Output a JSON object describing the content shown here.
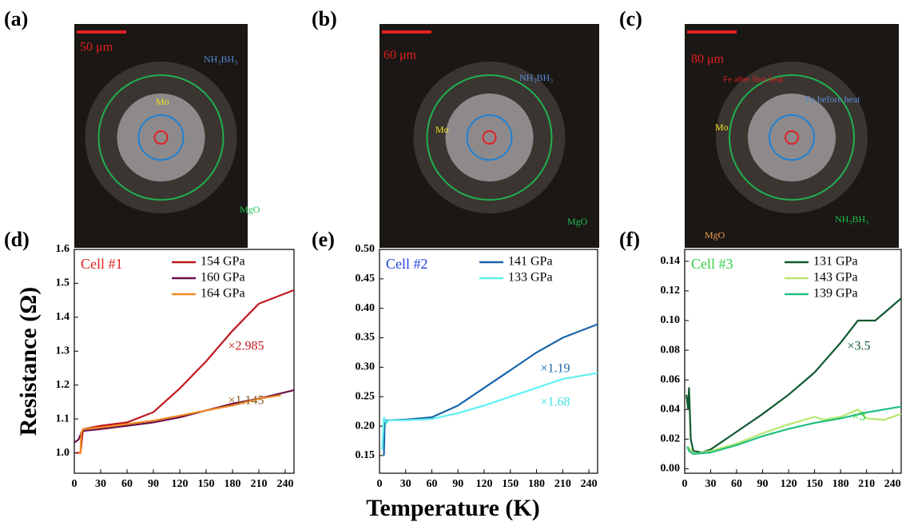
{
  "figure": {
    "xlabel": "Temperature (K)",
    "ylabel": "Resistance (Ω)"
  },
  "panels": [
    {
      "label": "(a)",
      "texts": [
        "50 μm",
        "NH₃BH₃",
        "Mo",
        "MgO"
      ]
    },
    {
      "label": "(b)",
      "texts": [
        "60 μm",
        "NH₃BH₃",
        "Mo",
        "MgO"
      ]
    },
    {
      "label": "(c)",
      "texts": [
        "80 μm",
        "Fe after first heat",
        "Fe before heat",
        "Mo",
        "NH₃BH₃",
        "MgO"
      ]
    }
  ],
  "chart_data": [
    {
      "type": "line",
      "label": "(d)",
      "cell": "Cell #1",
      "cell_color": "#e02020",
      "xlim": [
        0,
        250
      ],
      "xticks": [
        0,
        30,
        60,
        90,
        120,
        150,
        180,
        210,
        240
      ],
      "ylim": [
        0.94,
        1.6
      ],
      "yticks": [
        {
          "value": 1,
          "label": "1.0"
        },
        1.1,
        1.2,
        1.3,
        1.4,
        1.5,
        1.6
      ],
      "series": [
        {
          "name": "154 GPa",
          "color": "#c0181c",
          "x": [
            2,
            7,
            10,
            30,
            60,
            90,
            120,
            150,
            180,
            210,
            250
          ],
          "values": [
            1.0,
            1.0,
            1.07,
            1.08,
            1.09,
            1.12,
            1.19,
            1.27,
            1.36,
            1.44,
            1.48
          ]
        },
        {
          "name": "160 GPa",
          "color": "#6a0f4a",
          "x": [
            0,
            5,
            8,
            10,
            30,
            60,
            90,
            120,
            150,
            180,
            210,
            250
          ],
          "values": [
            1.03,
            1.04,
            1.06,
            1.065,
            1.07,
            1.08,
            1.09,
            1.105,
            1.125,
            1.145,
            1.16,
            1.185
          ]
        },
        {
          "name": "164 GPa",
          "color": "#f08a24",
          "x": [
            5,
            7,
            8,
            10,
            30,
            60,
            90,
            120,
            150,
            180,
            210,
            235
          ],
          "values": [
            1.0,
            1.0,
            1.06,
            1.07,
            1.075,
            1.085,
            1.095,
            1.11,
            1.125,
            1.14,
            1.16,
            1.17
          ]
        }
      ],
      "annotations": [
        {
          "text": "×2.985",
          "color": "#c0181c"
        },
        {
          "text": "×1.145",
          "color": "#8a5a20"
        }
      ]
    },
    {
      "type": "line",
      "label": "(e)",
      "cell": "Cell #2",
      "cell_color": "#2040e0",
      "xlim": [
        0,
        250
      ],
      "xticks": [
        0,
        30,
        60,
        90,
        120,
        150,
        180,
        210,
        240
      ],
      "ylim": [
        0.12,
        0.5
      ],
      "yticks": [
        0.15,
        {
          "value": 0.2,
          "label": "0.20"
        },
        0.25,
        {
          "value": 0.3,
          "label": "0.30"
        },
        0.35,
        {
          "value": 0.4,
          "label": "0.40"
        },
        0.45,
        {
          "value": 0.5,
          "label": "0.50"
        }
      ],
      "series": [
        {
          "name": "141 GPa",
          "color": "#1a64a8",
          "x": [
            5,
            6,
            10,
            30,
            60,
            90,
            120,
            150,
            180,
            210,
            250
          ],
          "values": [
            0.15,
            0.21,
            0.21,
            0.211,
            0.215,
            0.235,
            0.265,
            0.295,
            0.325,
            0.35,
            0.373
          ]
        },
        {
          "name": "133 GPa",
          "color": "#5ff0f0",
          "x": [
            3,
            5,
            8,
            10,
            30,
            60,
            90,
            120,
            150,
            180,
            210,
            250
          ],
          "values": [
            0.16,
            0.215,
            0.205,
            0.21,
            0.21,
            0.212,
            0.222,
            0.235,
            0.25,
            0.265,
            0.28,
            0.29
          ]
        }
      ],
      "annotations": [
        {
          "text": "×1.19",
          "color": "#1a64a8"
        },
        {
          "text": "×1.68",
          "color": "#40e0e0"
        }
      ]
    },
    {
      "type": "line",
      "label": "(f)",
      "cell": "Cell #3",
      "cell_color": "#30d040",
      "xlim": [
        0,
        250
      ],
      "xticks": [
        0,
        30,
        60,
        90,
        120,
        150,
        180,
        210,
        240
      ],
      "ylim": [
        -0.003,
        0.148
      ],
      "yticks": [
        {
          "value": 0,
          "label": "0.00"
        },
        0.02,
        0.04,
        0.06,
        0.08,
        {
          "value": 0.1,
          "label": "0.10"
        },
        0.12,
        0.14
      ],
      "series": [
        {
          "name": "131 GPa",
          "color": "#0f5a30",
          "x": [
            2,
            4,
            5,
            7,
            10,
            20,
            30,
            60,
            90,
            120,
            150,
            180,
            200,
            210,
            220,
            240,
            250
          ],
          "values": [
            0.05,
            0.04,
            0.055,
            0.02,
            0.012,
            0.011,
            0.013,
            0.025,
            0.037,
            0.05,
            0.065,
            0.085,
            0.1,
            0.1,
            0.1,
            0.11,
            0.115
          ]
        },
        {
          "name": "143 GPa",
          "color": "#b8e870",
          "x": [
            3,
            7,
            10,
            30,
            60,
            90,
            120,
            150,
            160,
            180,
            200,
            210,
            230,
            250
          ],
          "values": [
            0.015,
            0.013,
            0.01,
            0.012,
            0.017,
            0.024,
            0.03,
            0.035,
            0.033,
            0.035,
            0.04,
            0.034,
            0.033,
            0.037
          ]
        },
        {
          "name": "139 GPa",
          "color": "#20c080",
          "x": [
            3,
            5,
            10,
            30,
            60,
            90,
            120,
            150,
            180,
            210,
            250
          ],
          "values": [
            0.015,
            0.012,
            0.01,
            0.011,
            0.016,
            0.022,
            0.027,
            0.031,
            0.034,
            0.038,
            0.042
          ]
        }
      ],
      "annotations": [
        {
          "text": "×3.5",
          "color": "#0f5a30"
        },
        {
          "text": "×3",
          "color": "#30d040"
        }
      ]
    }
  ]
}
